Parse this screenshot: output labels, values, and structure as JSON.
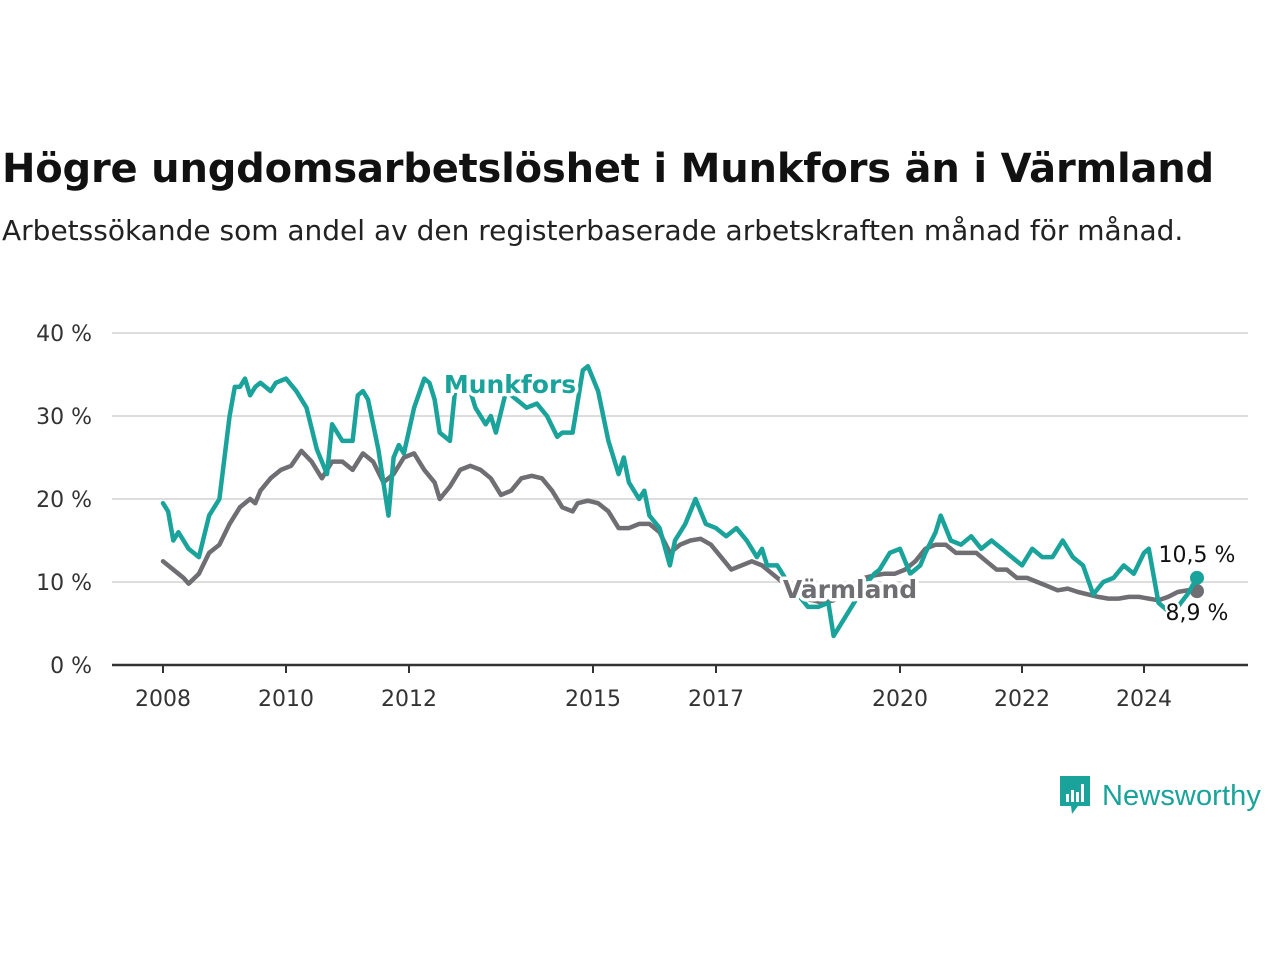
{
  "title": "Högre ungdomsarbetslöshet i Munkfors än i Värmland",
  "subtitle": "Arbetssökande som andel av den registerbaserade arbetskraften månad för månad.",
  "brand": {
    "name": "Newsworthy",
    "icon": "newsworthy-logo-icon",
    "color": "#1aa39a"
  },
  "colors": {
    "munkfors": "#1aa39a",
    "varmland": "#6e6e73",
    "grid": "#dddddd",
    "axis": "#333333"
  },
  "chart_data": {
    "type": "line",
    "x_unit": "date",
    "ylim": [
      0,
      40
    ],
    "yticks": [
      0,
      10,
      20,
      30,
      40
    ],
    "ytick_labels": [
      "0 %",
      "10 %",
      "20 %",
      "30 %",
      "40 %"
    ],
    "xticks": [
      "2008-01",
      "2010-01",
      "2012-01",
      "2015-01",
      "2017-01",
      "2020-01",
      "2022-01",
      "2024-01"
    ],
    "xtick_labels": [
      "2008",
      "2010",
      "2012",
      "2015",
      "2017",
      "2020",
      "2022",
      "2024"
    ],
    "grid": true,
    "legend": "inline labels",
    "series": [
      {
        "name": "Munkfors",
        "color": "#1aa39a",
        "end_label": "10,5 %",
        "points": [
          [
            "2008-01",
            19.5
          ],
          [
            "2008-02",
            18.5
          ],
          [
            "2008-03",
            15
          ],
          [
            "2008-04",
            16
          ],
          [
            "2008-06",
            14
          ],
          [
            "2008-08",
            13
          ],
          [
            "2008-10",
            18
          ],
          [
            "2008-12",
            20
          ],
          [
            "2009-02",
            30
          ],
          [
            "2009-03",
            33.5
          ],
          [
            "2009-04",
            33.5
          ],
          [
            "2009-05",
            34.5
          ],
          [
            "2009-06",
            32.5
          ],
          [
            "2009-07",
            33.5
          ],
          [
            "2009-08",
            34
          ],
          [
            "2009-10",
            33
          ],
          [
            "2009-11",
            34
          ],
          [
            "2010-01",
            34.5
          ],
          [
            "2010-03",
            33
          ],
          [
            "2010-05",
            31
          ],
          [
            "2010-07",
            26
          ],
          [
            "2010-09",
            23
          ],
          [
            "2010-10",
            29
          ],
          [
            "2010-12",
            27
          ],
          [
            "2011-02",
            27
          ],
          [
            "2011-03",
            32.5
          ],
          [
            "2011-04",
            33
          ],
          [
            "2011-05",
            32
          ],
          [
            "2011-07",
            26
          ],
          [
            "2011-09",
            18
          ],
          [
            "2011-10",
            25
          ],
          [
            "2011-11",
            26.5
          ],
          [
            "2011-12",
            25.5
          ],
          [
            "2012-02",
            31
          ],
          [
            "2012-04",
            34.5
          ],
          [
            "2012-05",
            34
          ],
          [
            "2012-06",
            32
          ],
          [
            "2012-07",
            28
          ],
          [
            "2012-09",
            27
          ],
          [
            "2012-10",
            33
          ],
          [
            "2012-11",
            34
          ],
          [
            "2013-01",
            33
          ],
          [
            "2013-02",
            31
          ],
          [
            "2013-04",
            29
          ],
          [
            "2013-05",
            30
          ],
          [
            "2013-06",
            28
          ],
          [
            "2013-08",
            33
          ],
          [
            "2013-10",
            32
          ],
          [
            "2013-12",
            31
          ],
          [
            "2014-02",
            31.5
          ],
          [
            "2014-04",
            30
          ],
          [
            "2014-06",
            27.5
          ],
          [
            "2014-07",
            28
          ],
          [
            "2014-09",
            28
          ],
          [
            "2014-11",
            35.5
          ],
          [
            "2014-12",
            36
          ],
          [
            "2015-02",
            33
          ],
          [
            "2015-04",
            27
          ],
          [
            "2015-06",
            23
          ],
          [
            "2015-07",
            25
          ],
          [
            "2015-08",
            22
          ],
          [
            "2015-10",
            20
          ],
          [
            "2015-11",
            21
          ],
          [
            "2015-12",
            18
          ],
          [
            "2016-02",
            16.5
          ],
          [
            "2016-04",
            12
          ],
          [
            "2016-05",
            15
          ],
          [
            "2016-07",
            17
          ],
          [
            "2016-09",
            20
          ],
          [
            "2016-11",
            17
          ],
          [
            "2017-01",
            16.5
          ],
          [
            "2017-03",
            15.5
          ],
          [
            "2017-05",
            16.5
          ],
          [
            "2017-07",
            15
          ],
          [
            "2017-09",
            13
          ],
          [
            "2017-10",
            14
          ],
          [
            "2017-11",
            12
          ],
          [
            "2018-01",
            12
          ],
          [
            "2018-03",
            10
          ],
          [
            "2018-05",
            8.5
          ],
          [
            "2018-07",
            7
          ],
          [
            "2018-09",
            7
          ],
          [
            "2018-11",
            7.5
          ],
          [
            "2018-12",
            3.5
          ],
          [
            "2019-02",
            5.5
          ],
          [
            "2019-04",
            7.5
          ],
          [
            "2019-06",
            9.5
          ],
          [
            "2019-08",
            11
          ],
          [
            "2019-09",
            11.5
          ],
          [
            "2019-11",
            13.5
          ],
          [
            "2020-01",
            14
          ],
          [
            "2020-03",
            11
          ],
          [
            "2020-05",
            12
          ],
          [
            "2020-06",
            13.5
          ],
          [
            "2020-08",
            16
          ],
          [
            "2020-09",
            18
          ],
          [
            "2020-11",
            15
          ],
          [
            "2021-01",
            14.5
          ],
          [
            "2021-03",
            15.5
          ],
          [
            "2021-05",
            14
          ],
          [
            "2021-07",
            15
          ],
          [
            "2021-09",
            14
          ],
          [
            "2021-11",
            13
          ],
          [
            "2022-01",
            12
          ],
          [
            "2022-03",
            14
          ],
          [
            "2022-05",
            13
          ],
          [
            "2022-07",
            13
          ],
          [
            "2022-09",
            15
          ],
          [
            "2022-11",
            13
          ],
          [
            "2023-01",
            12
          ],
          [
            "2023-03",
            8.5
          ],
          [
            "2023-05",
            10
          ],
          [
            "2023-07",
            10.5
          ],
          [
            "2023-09",
            12
          ],
          [
            "2023-11",
            11
          ],
          [
            "2024-01",
            13.5
          ],
          [
            "2024-02",
            14
          ],
          [
            "2024-04",
            7.5
          ],
          [
            "2024-06",
            6.5
          ],
          [
            "2024-08",
            7
          ],
          [
            "2024-10",
            8.5
          ],
          [
            "2024-12",
            10.5
          ]
        ]
      },
      {
        "name": "Värmland",
        "color": "#6e6e73",
        "end_label": "8,9 %",
        "points": [
          [
            "2008-01",
            12.5
          ],
          [
            "2008-03",
            11.5
          ],
          [
            "2008-05",
            10.5
          ],
          [
            "2008-06",
            9.8
          ],
          [
            "2008-08",
            11
          ],
          [
            "2008-10",
            13.5
          ],
          [
            "2008-12",
            14.5
          ],
          [
            "2009-02",
            17
          ],
          [
            "2009-04",
            19
          ],
          [
            "2009-06",
            20
          ],
          [
            "2009-07",
            19.5
          ],
          [
            "2009-08",
            21
          ],
          [
            "2009-10",
            22.5
          ],
          [
            "2009-12",
            23.5
          ],
          [
            "2010-02",
            24
          ],
          [
            "2010-04",
            25.8
          ],
          [
            "2010-06",
            24.5
          ],
          [
            "2010-08",
            22.5
          ],
          [
            "2010-10",
            24.5
          ],
          [
            "2010-12",
            24.5
          ],
          [
            "2011-02",
            23.5
          ],
          [
            "2011-04",
            25.5
          ],
          [
            "2011-06",
            24.5
          ],
          [
            "2011-08",
            22
          ],
          [
            "2011-10",
            23
          ],
          [
            "2011-12",
            25
          ],
          [
            "2012-02",
            25.5
          ],
          [
            "2012-04",
            23.5
          ],
          [
            "2012-06",
            22
          ],
          [
            "2012-07",
            20
          ],
          [
            "2012-09",
            21.5
          ],
          [
            "2012-11",
            23.5
          ],
          [
            "2013-01",
            24
          ],
          [
            "2013-03",
            23.5
          ],
          [
            "2013-05",
            22.5
          ],
          [
            "2013-07",
            20.5
          ],
          [
            "2013-09",
            21
          ],
          [
            "2013-11",
            22.5
          ],
          [
            "2014-01",
            22.8
          ],
          [
            "2014-03",
            22.5
          ],
          [
            "2014-05",
            21
          ],
          [
            "2014-07",
            19
          ],
          [
            "2014-09",
            18.5
          ],
          [
            "2014-10",
            19.5
          ],
          [
            "2014-12",
            19.8
          ],
          [
            "2015-02",
            19.5
          ],
          [
            "2015-04",
            18.5
          ],
          [
            "2015-06",
            16.5
          ],
          [
            "2015-08",
            16.5
          ],
          [
            "2015-10",
            17
          ],
          [
            "2015-12",
            17
          ],
          [
            "2016-02",
            16
          ],
          [
            "2016-04",
            13.5
          ],
          [
            "2016-06",
            14.5
          ],
          [
            "2016-08",
            15
          ],
          [
            "2016-10",
            15.2
          ],
          [
            "2016-12",
            14.5
          ],
          [
            "2017-02",
            13
          ],
          [
            "2017-04",
            11.5
          ],
          [
            "2017-06",
            12
          ],
          [
            "2017-08",
            12.5
          ],
          [
            "2017-10",
            12
          ],
          [
            "2017-12",
            11
          ],
          [
            "2018-02",
            10
          ],
          [
            "2018-04",
            9
          ],
          [
            "2018-06",
            8
          ],
          [
            "2018-08",
            7.8
          ],
          [
            "2018-10",
            7.5
          ],
          [
            "2018-12",
            7.8
          ],
          [
            "2019-02",
            8.5
          ],
          [
            "2019-04",
            9.5
          ],
          [
            "2019-06",
            10.5
          ],
          [
            "2019-08",
            10.8
          ],
          [
            "2019-10",
            11
          ],
          [
            "2019-12",
            11
          ],
          [
            "2020-02",
            11.5
          ],
          [
            "2020-04",
            12.5
          ],
          [
            "2020-06",
            14
          ],
          [
            "2020-08",
            14.5
          ],
          [
            "2020-10",
            14.5
          ],
          [
            "2020-12",
            13.5
          ],
          [
            "2021-02",
            13.5
          ],
          [
            "2021-04",
            13.5
          ],
          [
            "2021-06",
            12.5
          ],
          [
            "2021-08",
            11.5
          ],
          [
            "2021-10",
            11.5
          ],
          [
            "2021-12",
            10.5
          ],
          [
            "2022-02",
            10.5
          ],
          [
            "2022-04",
            10
          ],
          [
            "2022-06",
            9.5
          ],
          [
            "2022-08",
            9
          ],
          [
            "2022-10",
            9.2
          ],
          [
            "2022-12",
            8.8
          ],
          [
            "2023-02",
            8.5
          ],
          [
            "2023-04",
            8.2
          ],
          [
            "2023-06",
            8
          ],
          [
            "2023-08",
            8
          ],
          [
            "2023-10",
            8.2
          ],
          [
            "2023-12",
            8.2
          ],
          [
            "2024-02",
            8
          ],
          [
            "2024-04",
            7.8
          ],
          [
            "2024-06",
            8.2
          ],
          [
            "2024-08",
            8.8
          ],
          [
            "2024-10",
            9
          ],
          [
            "2024-12",
            8.9
          ]
        ]
      }
    ]
  }
}
